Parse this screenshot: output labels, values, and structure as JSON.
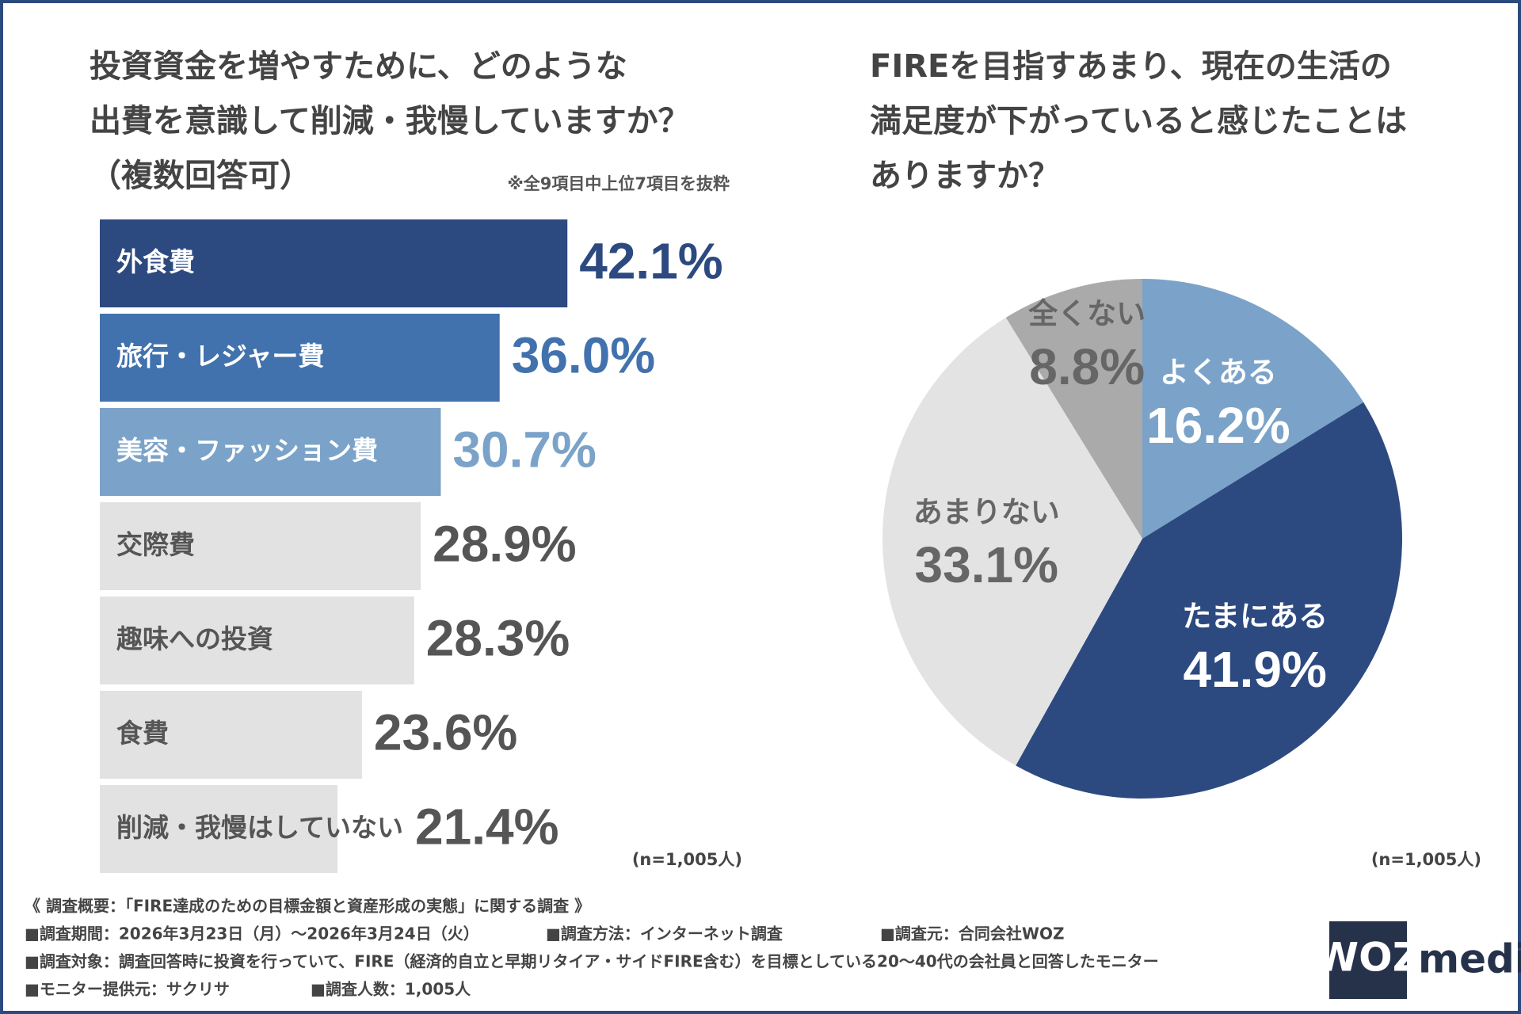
{
  "chart_data": [
    {
      "type": "bar",
      "title_lines": [
        "投資資金を増やすために、どのような",
        "出費を意識して削減・我慢していますか？",
        "（複数回答可）"
      ],
      "note": "※全9項目中上位7項目を抜粋",
      "sample": "(n=1,005人)",
      "categories": [
        "外食費",
        "旅行・レジャー費",
        "美容・ファッション費",
        "交際費",
        "趣味への投資",
        "食費",
        "削減・我慢はしていない"
      ],
      "values": [
        42.1,
        36.0,
        30.7,
        28.9,
        28.3,
        23.6,
        21.4
      ],
      "value_labels": [
        "42.1%",
        "36.0%",
        "30.7%",
        "28.9%",
        "28.3%",
        "23.6%",
        "21.4%"
      ],
      "colors": [
        "#2d4a80",
        "#4272ad",
        "#7ba3c9",
        "#e2e2e2",
        "#e2e2e2",
        "#e2e2e2",
        "#e2e2e2"
      ],
      "category_label_colors": [
        "#ffffff",
        "#ffffff",
        "#ffffff",
        "#555555",
        "#555555",
        "#555555",
        "#555555"
      ],
      "value_label_colors": [
        "#2d4a80",
        "#4272ad",
        "#7ba3c9",
        "#555555",
        "#555555",
        "#555555",
        "#555555"
      ]
    },
    {
      "type": "pie",
      "title_lines": [
        "FIREを目指すあまり、現在の生活の",
        "満足度が下がっていると感じたことは",
        "ありますか？"
      ],
      "sample": "(n=1,005人)",
      "categories": [
        "よくある",
        "たまにある",
        "あまりない",
        "全くない"
      ],
      "values": [
        16.2,
        41.9,
        33.1,
        8.8
      ],
      "value_labels": [
        "16.2%",
        "41.9%",
        "33.1%",
        "8.8%"
      ],
      "colors": [
        "#7ba3c9",
        "#2d4a80",
        "#e3e3e3",
        "#aaaaaa"
      ],
      "label_colors": [
        "#ffffff",
        "#ffffff",
        "#666666",
        "#666666"
      ]
    }
  ],
  "survey_notes": {
    "heading": "《 調査概要：「FIRE達成のための目標金額と資産形成の実態」に関する調査 》",
    "rows": [
      [
        "■調査期間：2026年3月23日（月）～2026年3月24日（火）",
        "■調査方法：インターネット調査",
        "■調査元：合同会社WOZ"
      ],
      [
        "■調査対象：調査回答時に投資を行っていて、FIRE（経済的自立と早期リタイア・サイドFIRE含む）を目標としている20〜40代の会社員と回答したモニター"
      ],
      [
        "■モニター提供元：サクリサ",
        "■調査人数：1,005人"
      ]
    ]
  },
  "logo": {
    "mark": "WOZ",
    "text": "media"
  }
}
